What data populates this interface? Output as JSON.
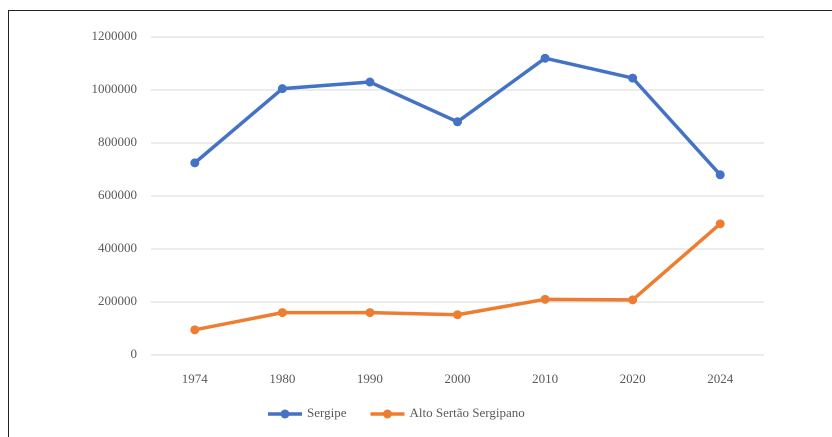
{
  "chart_data": {
    "type": "line",
    "categories": [
      "1974",
      "1980",
      "1990",
      "2000",
      "2010",
      "2020",
      "2024"
    ],
    "series": [
      {
        "name": "Sergipe",
        "color": "#4472c4",
        "values": [
          725000,
          1005000,
          1030000,
          880000,
          1120000,
          1045000,
          680000
        ]
      },
      {
        "name": "Alto Sertão Sergipano",
        "color": "#ed7d31",
        "values": [
          95000,
          160000,
          160000,
          152000,
          210000,
          208000,
          495000
        ]
      }
    ],
    "ylim": [
      0,
      1200000
    ],
    "yticks": [
      0,
      200000,
      400000,
      600000,
      800000,
      1000000,
      1200000
    ],
    "grid": true,
    "legend": "bottom"
  }
}
